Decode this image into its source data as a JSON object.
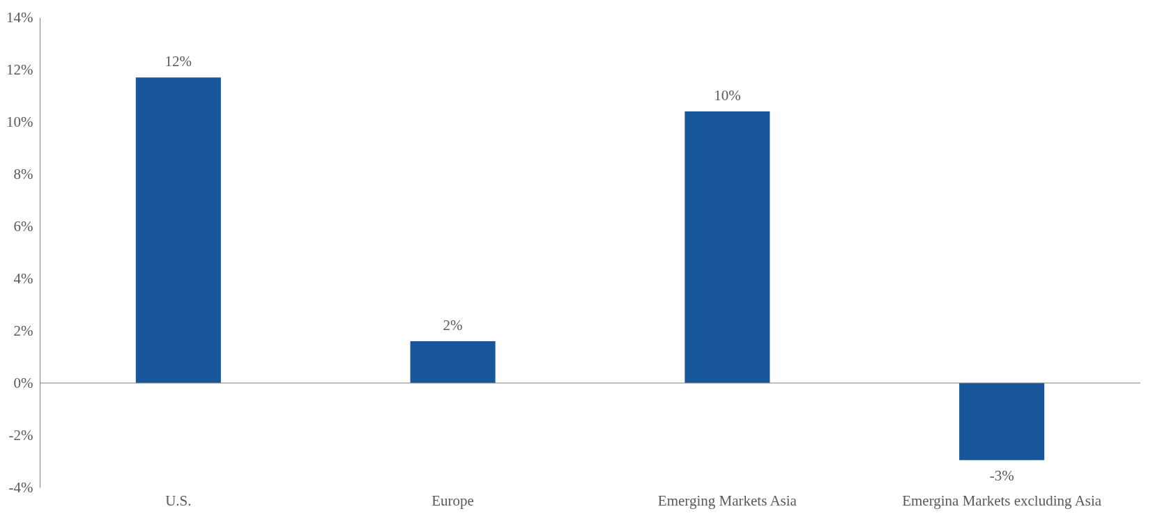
{
  "chart_data": {
    "type": "bar",
    "categories": [
      "U.S.",
      "Europe",
      "Emerging Markets Asia",
      "Emergina Markets excluding Asia"
    ],
    "values": [
      11.7,
      1.6,
      10.4,
      -2.95
    ],
    "value_labels": [
      "12%",
      "2%",
      "10%",
      "-3%"
    ],
    "color": "#17569b",
    "ylim": [
      -4,
      14
    ],
    "yticks": [
      {
        "value": -4,
        "label": "-4%"
      },
      {
        "value": -2,
        "label": "-2%"
      },
      {
        "value": 0,
        "label": "0%"
      },
      {
        "value": 2,
        "label": "2%"
      },
      {
        "value": 4,
        "label": "4%"
      },
      {
        "value": 6,
        "label": "6%"
      },
      {
        "value": 8,
        "label": "8%"
      },
      {
        "value": 10,
        "label": "10%"
      },
      {
        "value": 12,
        "label": "12%"
      },
      {
        "value": 14,
        "label": "14%"
      }
    ]
  }
}
